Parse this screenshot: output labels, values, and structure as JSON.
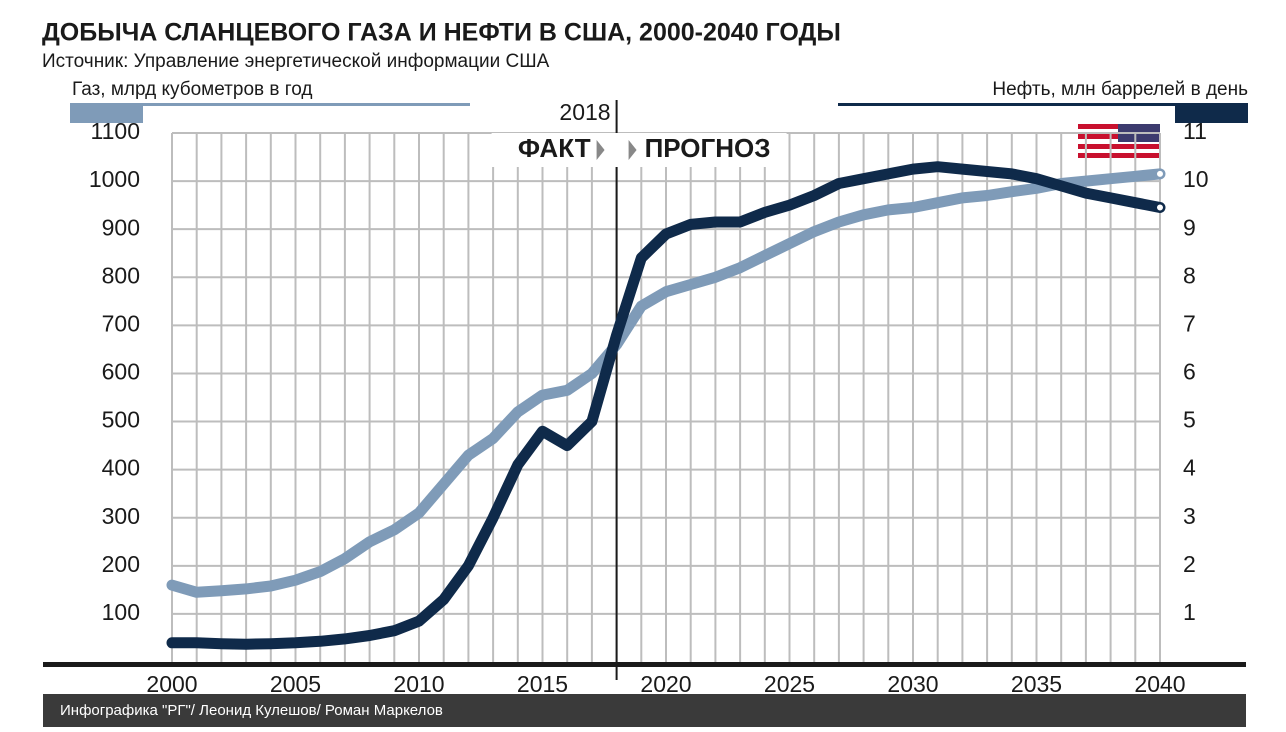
{
  "chart_data": {
    "type": "line",
    "title": "ДОБЫЧА СЛАНЦЕВОГО ГАЗА И НЕФТИ В США, 2000-2040 ГОДЫ",
    "subtitle": "Источник: Управление энергетической информации США",
    "y_label": "Газ, млрд кубометров в год",
    "y2_label": "Нефть, млн баррелей в день",
    "divider": {
      "x": 2018,
      "left_label": "ФАКТ",
      "right_label": "ПРОГНОЗ"
    },
    "credit": "Инфографика \"РГ\"/ Леонид Кулешов/ Роман Маркелов",
    "x": [
      2000,
      2001,
      2002,
      2003,
      2004,
      2005,
      2006,
      2007,
      2008,
      2009,
      2010,
      2011,
      2012,
      2013,
      2014,
      2015,
      2016,
      2017,
      2018,
      2019,
      2020,
      2021,
      2022,
      2023,
      2024,
      2025,
      2026,
      2027,
      2028,
      2029,
      2030,
      2031,
      2032,
      2033,
      2034,
      2035,
      2036,
      2037,
      2038,
      2039,
      2040
    ],
    "xlim": [
      2000,
      2040
    ],
    "xticks": [
      2000,
      2005,
      2010,
      2015,
      2020,
      2025,
      2030,
      2035,
      2040
    ],
    "ylim": [
      0,
      1100
    ],
    "yticks": [
      100,
      200,
      300,
      400,
      500,
      600,
      700,
      800,
      900,
      1000,
      1100
    ],
    "y2lim": [
      0,
      11
    ],
    "y2ticks": [
      1,
      2,
      3,
      4,
      5,
      6,
      7,
      8,
      9,
      10,
      11
    ],
    "grid": true,
    "series": [
      {
        "name": "Газ",
        "color": "#7f9bb8",
        "values": [
          160,
          145,
          148,
          152,
          158,
          170,
          188,
          215,
          250,
          275,
          310,
          370,
          430,
          465,
          520,
          555,
          565,
          600,
          660,
          740,
          770,
          785,
          800,
          820,
          845,
          870,
          895,
          915,
          930,
          940,
          945,
          955,
          965,
          970,
          978,
          985,
          995,
          1000,
          1005,
          1010,
          1015
        ]
      },
      {
        "name": "Нефть",
        "color": "#0f2a4a",
        "axis": "y2",
        "values": [
          0.4,
          0.4,
          0.38,
          0.37,
          0.38,
          0.4,
          0.43,
          0.48,
          0.55,
          0.65,
          0.85,
          1.3,
          2.0,
          3.0,
          4.1,
          4.8,
          4.5,
          5.0,
          6.8,
          8.4,
          8.9,
          9.1,
          9.15,
          9.15,
          9.35,
          9.5,
          9.7,
          9.95,
          10.05,
          10.15,
          10.25,
          10.3,
          10.25,
          10.2,
          10.15,
          10.05,
          9.9,
          9.75,
          9.65,
          9.55,
          9.45
        ]
      }
    ]
  }
}
